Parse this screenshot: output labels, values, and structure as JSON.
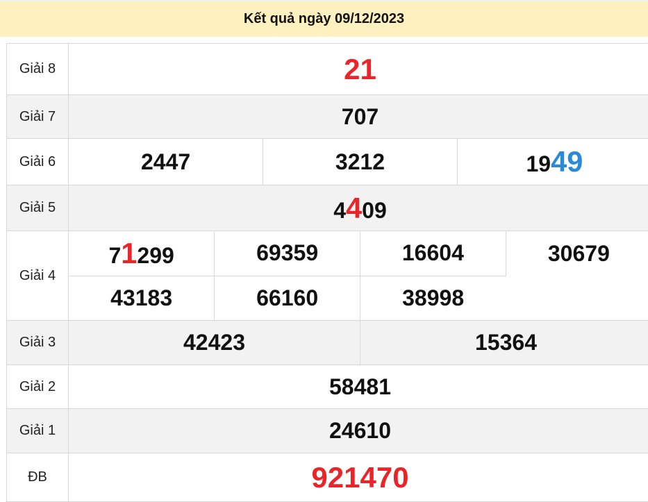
{
  "title": "Kết quả ngày 09/12/2023",
  "colors": {
    "header_bg": "#fff0bf",
    "red": "#e8262a",
    "blue": "#2a8ad8",
    "stripe": "#f2f2f2"
  },
  "prizes": [
    {
      "label": "Giải 8",
      "big": true,
      "rows": [
        [
          [
            {
              "t": "21",
              "c": "red"
            }
          ]
        ]
      ]
    },
    {
      "label": "Giải 7",
      "rows": [
        [
          [
            {
              "t": "707"
            }
          ]
        ]
      ]
    },
    {
      "label": "Giải 6",
      "rows": [
        [
          [
            {
              "t": "2447"
            }
          ],
          [
            {
              "t": "3212"
            }
          ],
          [
            {
              "t": "19"
            },
            {
              "t": "49",
              "c": "blue"
            }
          ]
        ]
      ]
    },
    {
      "label": "Giải 5",
      "rows": [
        [
          [
            {
              "t": "4"
            },
            {
              "t": "4",
              "c": "red"
            },
            {
              "t": "09"
            }
          ]
        ]
      ]
    },
    {
      "label": "Giải 4",
      "rows": [
        [
          [
            {
              "t": "7"
            },
            {
              "t": "1",
              "c": "red"
            },
            {
              "t": "299"
            }
          ],
          [
            {
              "t": "69359"
            }
          ],
          [
            {
              "t": "16604"
            }
          ],
          [
            {
              "t": "30679"
            }
          ]
        ],
        [
          [
            {
              "t": "43183"
            }
          ],
          [
            {
              "t": "66160"
            }
          ],
          [
            {
              "t": "38998"
            }
          ]
        ]
      ]
    },
    {
      "label": "Giải 3",
      "rows": [
        [
          [
            {
              "t": "42423"
            }
          ],
          [
            {
              "t": "15364"
            }
          ]
        ]
      ]
    },
    {
      "label": "Giải 2",
      "rows": [
        [
          [
            {
              "t": "58481"
            }
          ]
        ]
      ]
    },
    {
      "label": "Giải 1",
      "rows": [
        [
          [
            {
              "t": "24610"
            }
          ]
        ]
      ]
    },
    {
      "label": "ĐB",
      "big": true,
      "rows": [
        [
          [
            {
              "t": "921470",
              "c": "red"
            }
          ]
        ]
      ]
    }
  ]
}
